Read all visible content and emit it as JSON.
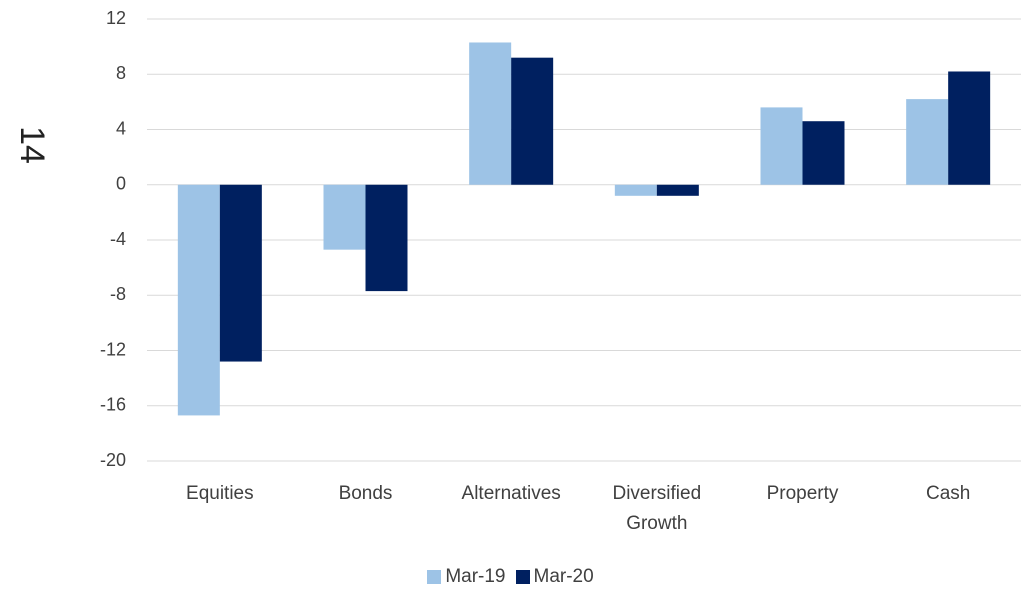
{
  "page_number": "14",
  "chart_data": {
    "type": "bar",
    "categories": [
      "Equities",
      "Bonds",
      "Alternatives",
      "Diversified Growth",
      "Property",
      "Cash"
    ],
    "series": [
      {
        "name": "Mar-19",
        "color": "#9dc3e6",
        "values": [
          -16.7,
          -4.7,
          10.3,
          -0.8,
          5.6,
          6.2
        ]
      },
      {
        "name": "Mar-20",
        "color": "#002060",
        "values": [
          -12.8,
          -7.7,
          9.2,
          -0.8,
          4.6,
          8.2
        ]
      }
    ],
    "ylim": [
      -20,
      12
    ],
    "yticks": [
      -20,
      -16,
      -12,
      -8,
      -4,
      0,
      4,
      8,
      12
    ],
    "grid": true
  }
}
